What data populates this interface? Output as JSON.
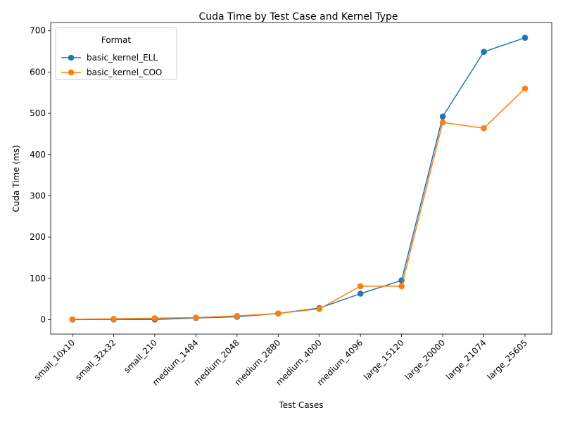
{
  "chart_data": {
    "type": "line",
    "title": "Cuda Time by Test Case and Kernel Type",
    "xlabel": "Test Cases",
    "ylabel": "Cuda Time (ms)",
    "categories": [
      "small_10x10",
      "small_32x32",
      "small_210",
      "medium_1484",
      "medium_2048",
      "medium_2880",
      "medium_4000",
      "medium_4096",
      "large_15120",
      "large_20000",
      "large_21074",
      "large_25605"
    ],
    "ylim": [
      -35,
      720
    ],
    "yticks": [
      0,
      100,
      200,
      300,
      400,
      500,
      600,
      700
    ],
    "grid": false,
    "legend": {
      "title": "Format",
      "position": "top-left"
    },
    "series": [
      {
        "name": "basic_kernel_ELL",
        "color": "#1f77b4",
        "values": [
          0.2,
          0.5,
          0.3,
          4,
          7,
          15,
          28,
          63,
          95,
          492,
          649,
          683
        ]
      },
      {
        "name": "basic_kernel_COO",
        "color": "#ff7f0e",
        "values": [
          1.0,
          2.0,
          3.5,
          5,
          9,
          15,
          26,
          81,
          81,
          478,
          464,
          560
        ]
      }
    ]
  }
}
